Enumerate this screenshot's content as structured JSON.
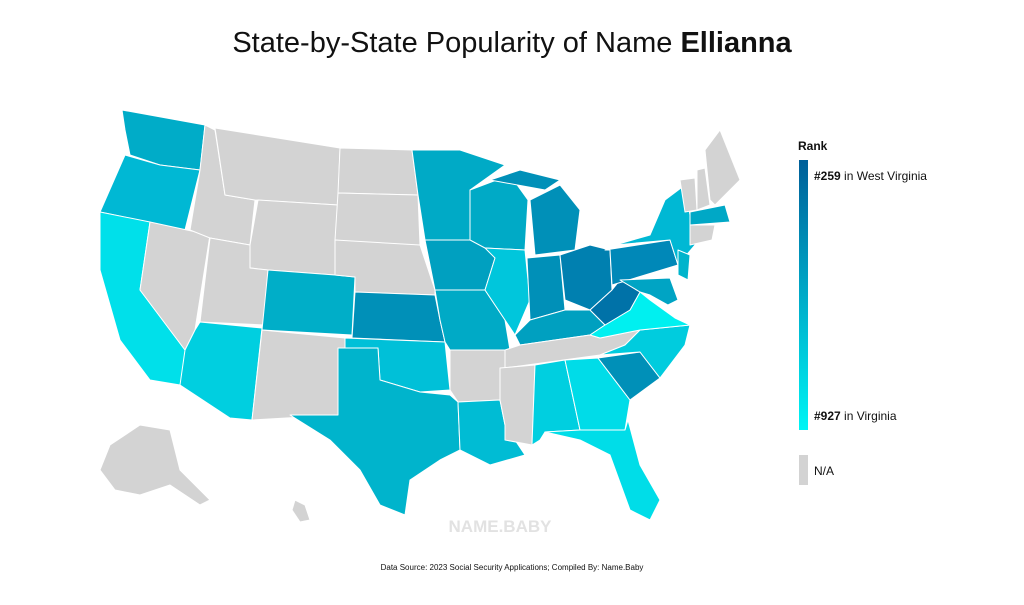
{
  "title": {
    "prefix": "State-by-State Popularity of Name",
    "name": "Ellianna"
  },
  "legend": {
    "title": "Rank",
    "high": {
      "rank": "#259",
      "label": "in West Virginia"
    },
    "low": {
      "rank": "#927",
      "label": "in Virginia"
    },
    "na": "N/A"
  },
  "watermark": "NAME.BABY",
  "source": "Data Source: 2023 Social Security Applications; Compiled By: Name.Baby"
}
